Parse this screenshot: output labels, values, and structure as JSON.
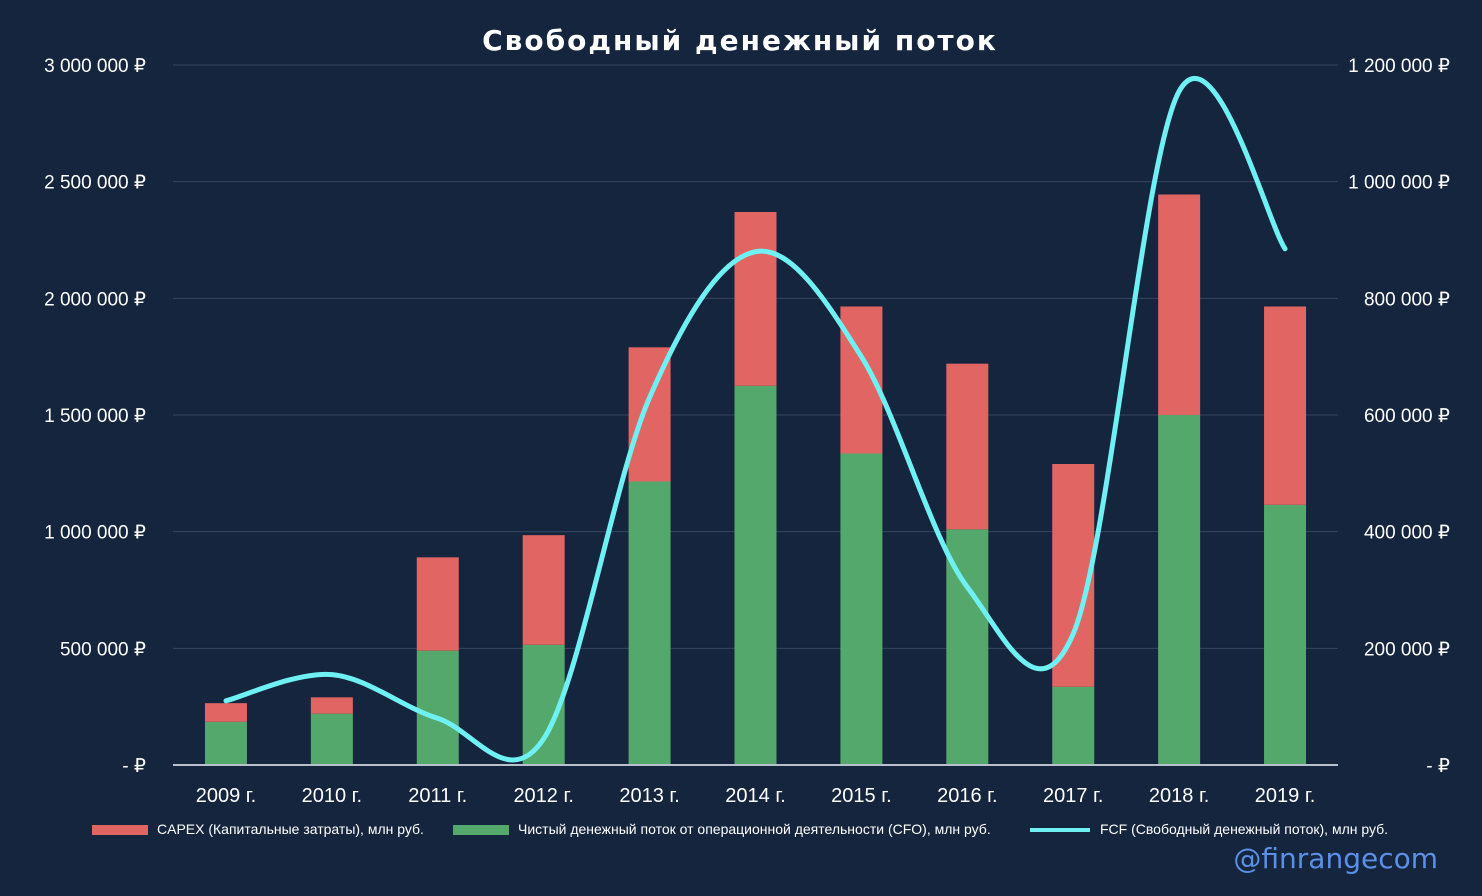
{
  "chart_data": {
    "type": "bar",
    "title": "Свободный денежный поток",
    "categories": [
      "2009 г.",
      "2010 г.",
      "2011 г.",
      "2012 г.",
      "2013 г.",
      "2014 г.",
      "2015 г.",
      "2016 г.",
      "2017 г.",
      "2018 г.",
      "2019 г."
    ],
    "series": [
      {
        "name": "Чистый денежный поток от операционной деятельности (CFO), млн руб.",
        "type": "bar",
        "axis": "left",
        "color": "#55a86c",
        "values": [
          185000,
          220000,
          490000,
          515000,
          1215000,
          1625000,
          1335000,
          1010000,
          335000,
          1500000,
          1115000
        ]
      },
      {
        "name": "CAPEX (Капитальные затраты), млн руб.",
        "type": "bar",
        "axis": "left",
        "stacked": true,
        "color": "#e06563",
        "values": [
          80000,
          70000,
          400000,
          470000,
          575000,
          745000,
          630000,
          710000,
          955000,
          945000,
          850000
        ]
      },
      {
        "name": "FCF (Свободный денежный поток), млн руб.",
        "type": "line",
        "axis": "right",
        "color": "#6ff0f2",
        "values": [
          110000,
          155000,
          80000,
          45000,
          630000,
          880000,
          700000,
          305000,
          225000,
          1155000,
          885000
        ]
      }
    ],
    "left_axis": {
      "ylim": [
        0,
        3000000
      ],
      "ticks": [
        0,
        500000,
        1000000,
        1500000,
        2000000,
        2500000,
        3000000
      ],
      "tick_labels": [
        "-   ₽",
        "500 000 ₽",
        "1 000 000 ₽",
        "1 500 000 ₽",
        "2 000 000 ₽",
        "2 500 000 ₽",
        "3 000 000 ₽"
      ]
    },
    "right_axis": {
      "ylim": [
        0,
        1200000
      ],
      "ticks": [
        0,
        200000,
        400000,
        600000,
        800000,
        1000000,
        1200000
      ],
      "tick_labels": [
        "-   ₽",
        "200 000 ₽",
        "400 000 ₽",
        "600 000 ₽",
        "800 000 ₽",
        "1 000 000 ₽",
        "1 200 000 ₽"
      ]
    },
    "grid": true,
    "legend_position": "bottom",
    "background": "#14253d"
  },
  "legend": {
    "capex": "CAPEX (Капитальные затраты), млн руб.",
    "cfo": "Чистый денежный поток от операционной деятельности (CFO), млн руб.",
    "fcf": "FCF (Свободный денежный поток), млн руб."
  },
  "watermark": "@finrangecom"
}
